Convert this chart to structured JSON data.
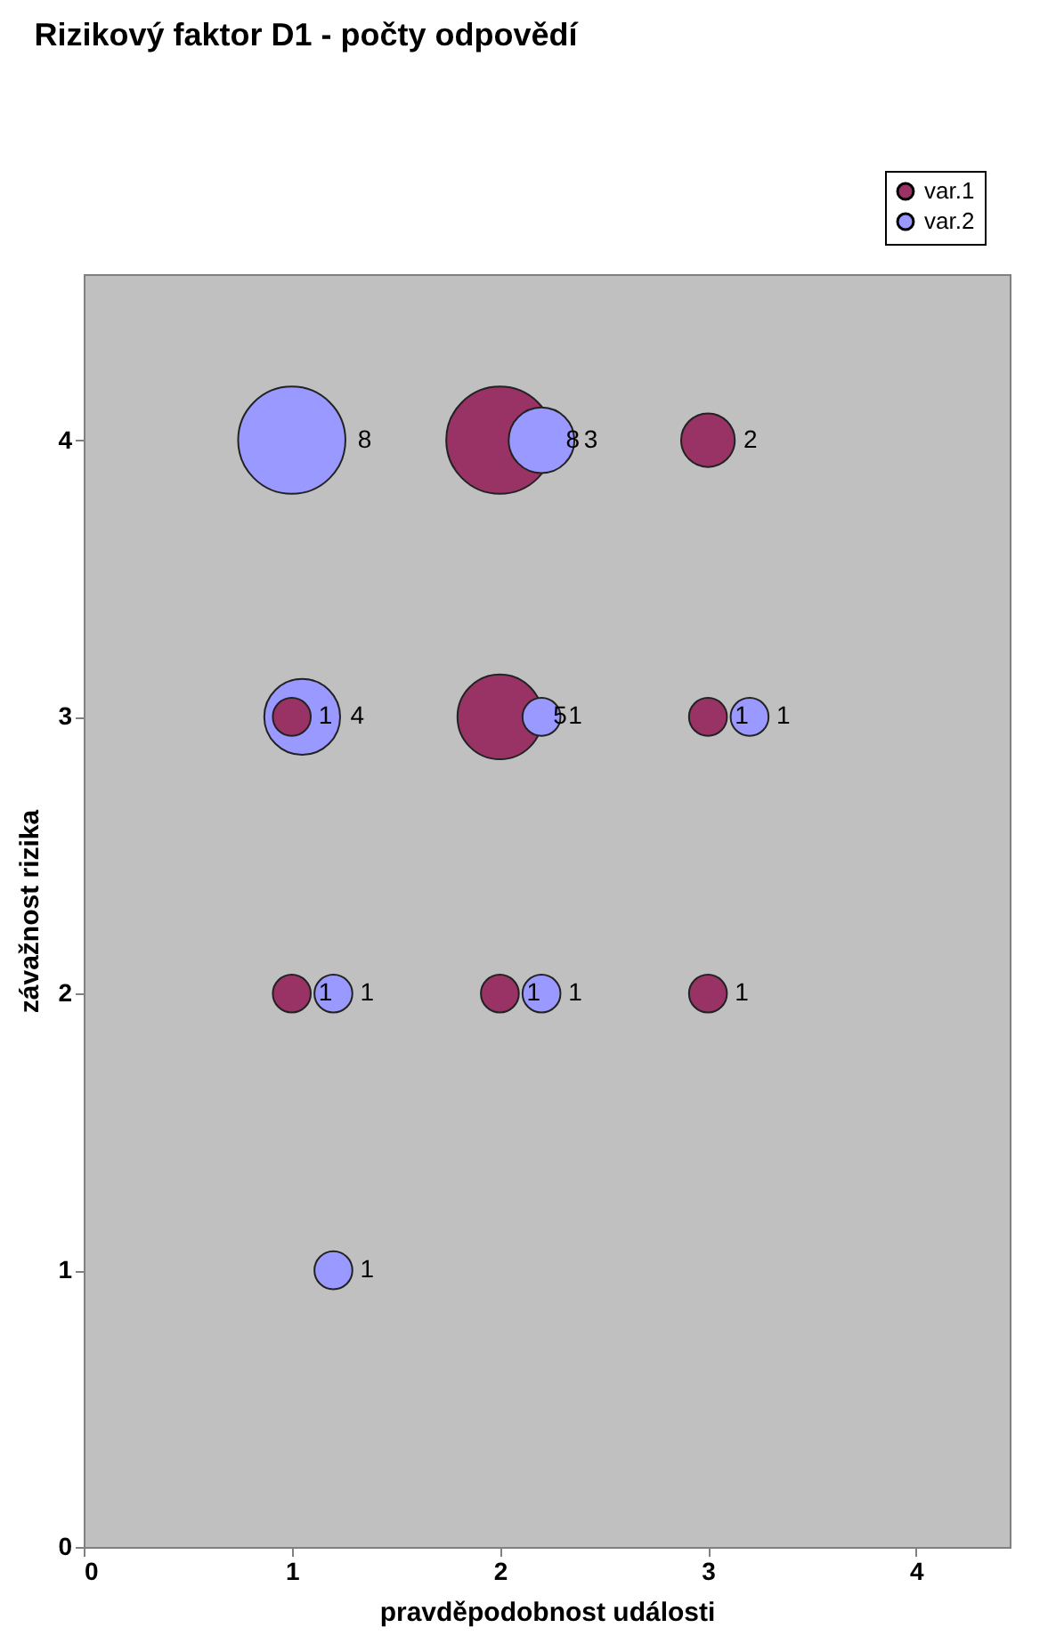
{
  "chart_data": {
    "type": "bubble",
    "title": "Rizikový faktor D1 - počty odpovědí",
    "xlabel": "pravděpodobnost události",
    "ylabel": "závažnost rizika",
    "xlim": [
      0,
      4.45
    ],
    "xticks": [
      0,
      1,
      2,
      3,
      4
    ],
    "ylim": [
      0,
      4.6
    ],
    "yticks": [
      0,
      1,
      2,
      3,
      4
    ],
    "legend": "top right",
    "series": [
      {
        "name": "var.1",
        "color": "#993366",
        "x": [
          1,
          1,
          2,
          2,
          2,
          3,
          3,
          3
        ],
        "values": [
          2,
          3,
          2,
          3,
          4,
          2,
          3,
          4
        ],
        "sizes": [
          0.125,
          0.125,
          0.125,
          0.625,
          1,
          0.125,
          0.125,
          0.25
        ]
      },
      {
        "name": "var.2",
        "color": "#9999ff",
        "x": [
          1.2,
          1.2,
          1.05,
          1,
          2.2,
          2.2,
          2.2,
          3.2
        ],
        "values": [
          1,
          2,
          3,
          4,
          2,
          3,
          4,
          3
        ],
        "sizes": [
          0.125,
          0.125,
          0.5,
          1,
          0.125,
          0.125,
          0.375,
          0.125
        ]
      }
    ],
    "annotations": [
      "1",
      "1",
      "1",
      "5",
      "8",
      "1",
      "1",
      "2",
      "1",
      "1",
      "4",
      "8",
      "1",
      "1",
      "3",
      "1"
    ]
  }
}
